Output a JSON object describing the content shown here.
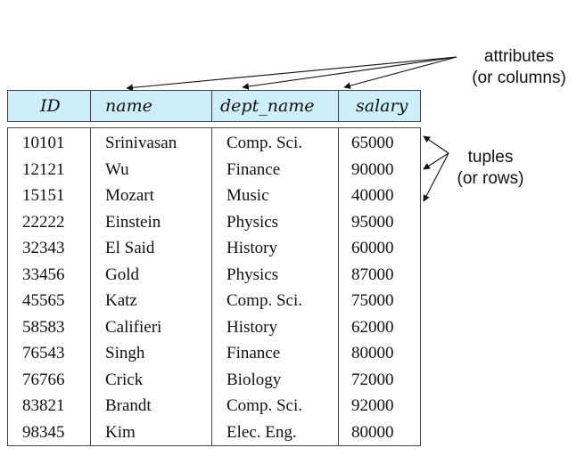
{
  "annotations": {
    "attributes_line1": "attributes",
    "attributes_line2": "(or columns)",
    "tuples_line1": "tuples",
    "tuples_line2": "(or rows)"
  },
  "table": {
    "columns": [
      "ID",
      "name",
      "dept_name",
      "salary"
    ],
    "rows": [
      [
        "10101",
        "Srinivasan",
        "Comp. Sci.",
        "65000"
      ],
      [
        "12121",
        "Wu",
        "Finance",
        "90000"
      ],
      [
        "15151",
        "Mozart",
        "Music",
        "40000"
      ],
      [
        "22222",
        "Einstein",
        "Physics",
        "95000"
      ],
      [
        "32343",
        "El Said",
        "History",
        "60000"
      ],
      [
        "33456",
        "Gold",
        "Physics",
        "87000"
      ],
      [
        "45565",
        "Katz",
        "Comp. Sci.",
        "75000"
      ],
      [
        "58583",
        "Califieri",
        "History",
        "62000"
      ],
      [
        "76543",
        "Singh",
        "Finance",
        "80000"
      ],
      [
        "76766",
        "Crick",
        "Biology",
        "72000"
      ],
      [
        "83821",
        "Brandt",
        "Comp. Sci.",
        "92000"
      ],
      [
        "98345",
        "Kim",
        "Elec. Eng.",
        "80000"
      ]
    ]
  }
}
